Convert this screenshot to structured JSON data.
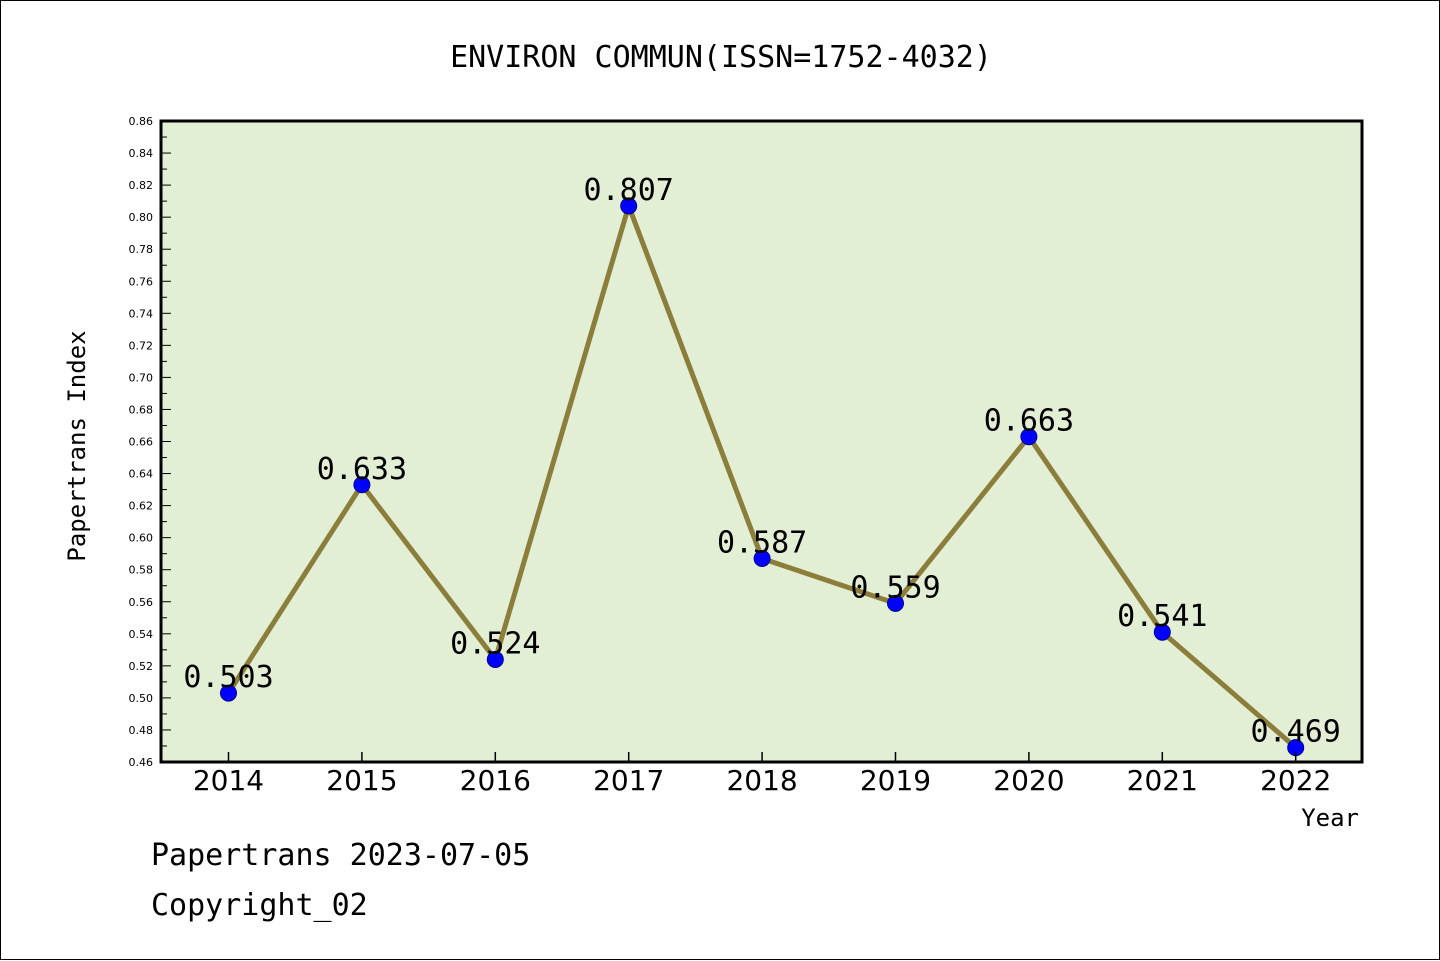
{
  "chart_data": {
    "type": "line",
    "title": "ENVIRON COMMUN(ISSN=1752-4032)",
    "xlabel": "Year",
    "ylabel": "Papertrans Index",
    "categories": [
      "2014",
      "2015",
      "2016",
      "2017",
      "2018",
      "2019",
      "2020",
      "2021",
      "2022"
    ],
    "values": [
      0.503,
      0.633,
      0.524,
      0.807,
      0.587,
      0.559,
      0.663,
      0.541,
      0.469
    ],
    "data_labels": [
      "0.503",
      "0.633",
      "0.524",
      "0.807",
      "0.587",
      "0.559",
      "0.663",
      "0.541",
      "0.469"
    ],
    "ylim": [
      0.46,
      0.86
    ],
    "yticks": [
      0.46,
      0.48,
      0.5,
      0.52,
      0.54,
      0.56,
      0.58,
      0.6,
      0.62,
      0.64,
      0.66,
      0.68,
      0.7,
      0.72,
      0.74,
      0.76,
      0.78,
      0.8,
      0.82,
      0.84,
      0.86
    ],
    "ytick_labels": [
      "0.46",
      "0.48",
      "0.50",
      "0.52",
      "0.54",
      "0.56",
      "0.58",
      "0.60",
      "0.62",
      "0.64",
      "0.66",
      "0.68",
      "0.70",
      "0.72",
      "0.74",
      "0.76",
      "0.78",
      "0.80",
      "0.82",
      "0.84",
      "0.86"
    ],
    "grid": false,
    "colors": {
      "plot_background": "#e2efd5",
      "line": "#8b7d3a",
      "marker": "#0000ff",
      "axis": "#000000"
    }
  },
  "footer": {
    "line1": "Papertrans 2023-07-05",
    "line2": "Copyright_02"
  }
}
